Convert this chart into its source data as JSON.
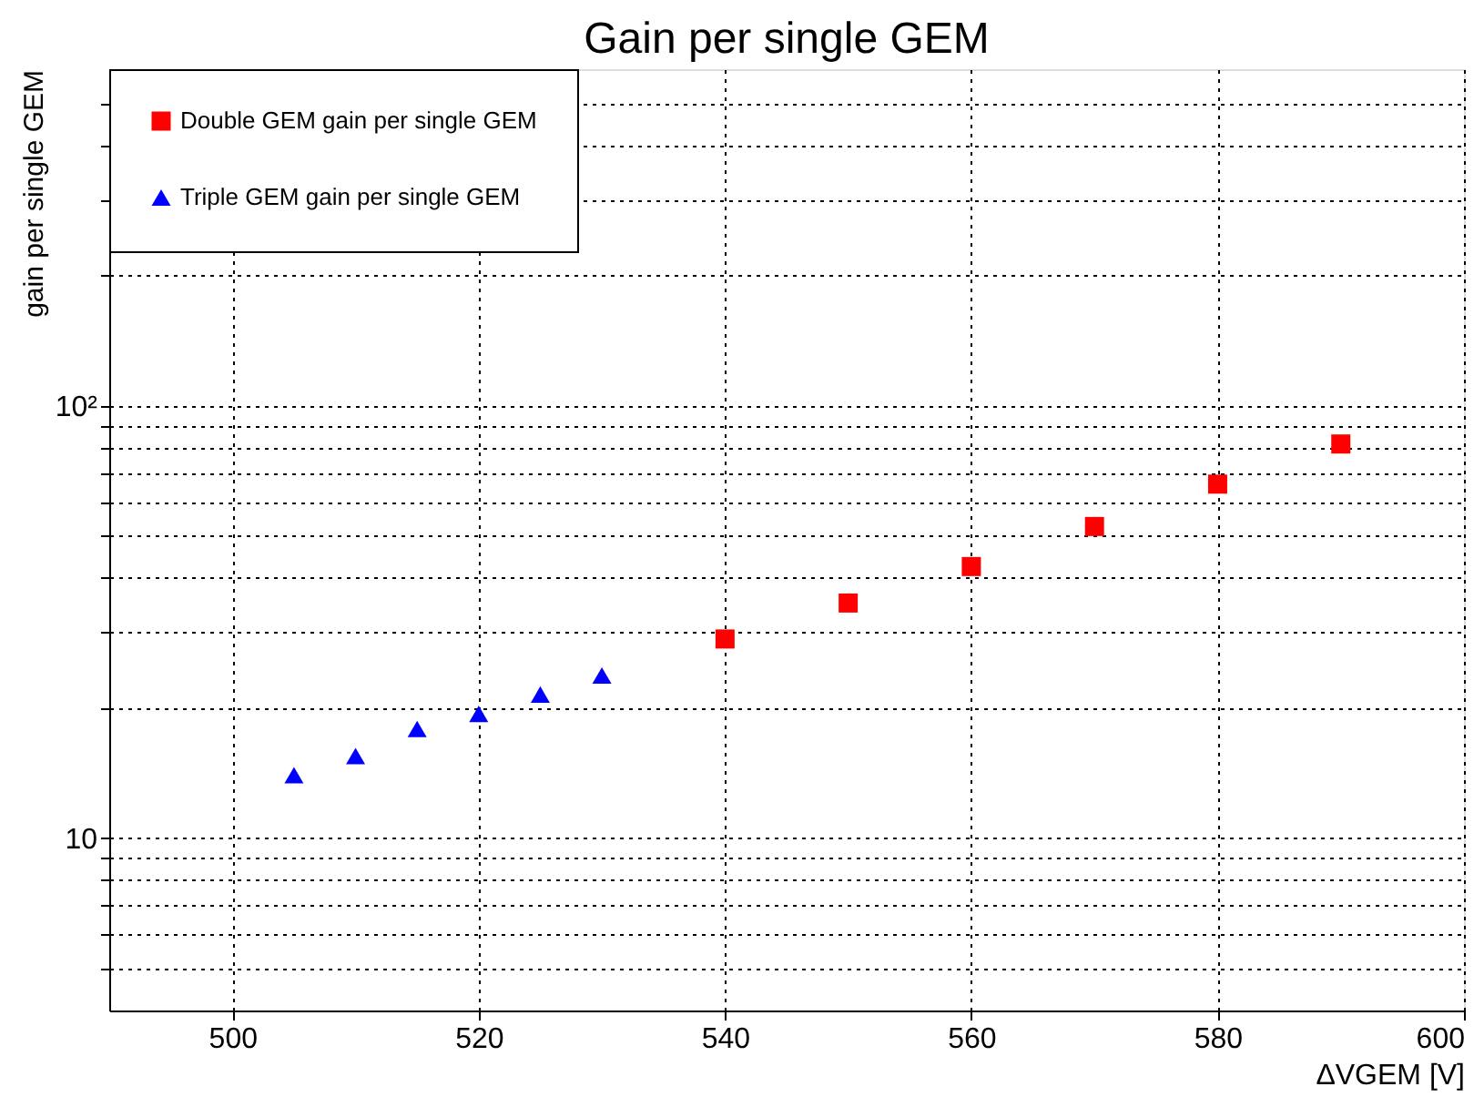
{
  "chart_data": {
    "type": "scatter",
    "title": "Gain per single GEM",
    "xlabel": "ΔVGEM [V]",
    "ylabel": "gain per single GEM",
    "xlim": [
      490,
      600
    ],
    "xticks": [
      500,
      520,
      540,
      560,
      580,
      600
    ],
    "ylim": [
      4,
      600
    ],
    "log": true,
    "yticks": [
      {
        "value": 5,
        "label": null
      },
      {
        "value": 6,
        "label": null
      },
      {
        "value": 7,
        "label": null
      },
      {
        "value": 8,
        "label": null
      },
      {
        "value": 9,
        "label": null
      },
      10,
      {
        "value": 20,
        "label": null
      },
      {
        "value": 30,
        "label": null
      },
      {
        "value": 40,
        "label": null
      },
      {
        "value": 50,
        "label": null
      },
      {
        "value": 60,
        "label": null
      },
      {
        "value": 70,
        "label": null
      },
      {
        "value": 80,
        "label": null
      },
      {
        "value": 90,
        "label": null
      },
      {
        "value": 100,
        "label": "10²"
      },
      {
        "value": 200,
        "label": null
      },
      {
        "value": 300,
        "label": null
      },
      {
        "value": 400,
        "label": null
      },
      {
        "value": 500,
        "label": null
      }
    ],
    "grid": true,
    "legend": "top left",
    "series": [
      {
        "name": "Double GEM gain per single GEM",
        "color": "#ff0000",
        "marker": "square",
        "x": [
          540,
          550,
          560,
          570,
          580,
          590
        ],
        "values": [
          28.9,
          35,
          42.5,
          52.6,
          65.9,
          81.6
        ]
      },
      {
        "name": "Triple GEM gain per single GEM",
        "color": "#0000ff",
        "marker": "triangle",
        "x": [
          505,
          510,
          515,
          520,
          525,
          530
        ],
        "values": [
          14.0,
          15.5,
          17.9,
          19.4,
          21.5,
          23.8
        ]
      }
    ]
  }
}
